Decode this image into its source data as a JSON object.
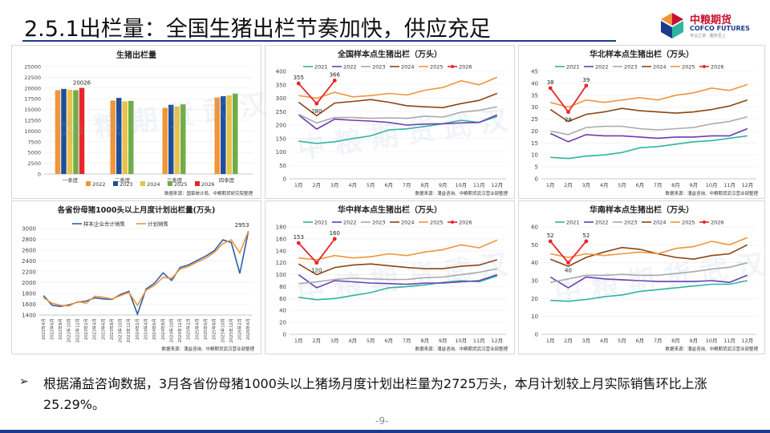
{
  "page": {
    "title": "2.5.1出栏量：全国生猪出栏节奏加快，供应充足",
    "logo_text": "中粮期货",
    "logo_sub": "COFCO FUTURES",
    "logo_tag": "专业之道 · 服务至上",
    "bullet": "根据涌益咨询数据，3月各省份母猪1000头以上猪场月度计划出栏量为2725万头，本月计划较上月实际销售环比上涨25.29%。",
    "page_number": "-9-",
    "watermark": "中粮期货武汉"
  },
  "colors": {
    "2021": "#2cb5a0",
    "2022": "#6a3bb4",
    "2023": "#a9a9a9",
    "2024": "#8b4513",
    "2025": "#f0953a",
    "2026": "#e8262a",
    "bar2022": "#f0953a",
    "bar2023": "#1f4e9a",
    "bar2024": "#e8c24a",
    "bar2025": "#70ad47",
    "bar2026": "#e8262a",
    "line_blue": "#2e5fa8",
    "line_orange": "#f0953a"
  },
  "chart_data": [
    {
      "id": "bar",
      "type": "bar",
      "title": "生猪出栏量",
      "categories": [
        "一季度",
        "二季度",
        "三季度",
        "四季度"
      ],
      "series": [
        {
          "name": "2022",
          "values": [
            19500,
            17100,
            15400,
            17800
          ]
        },
        {
          "name": "2023",
          "values": [
            19800,
            17700,
            16100,
            18100
          ]
        },
        {
          "name": "2024",
          "values": [
            19600,
            16900,
            15700,
            18300
          ]
        },
        {
          "name": "2025",
          "values": [
            19500,
            17000,
            16200,
            18700
          ]
        },
        {
          "name": "2026",
          "values": [
            20026,
            null,
            null,
            null
          ]
        }
      ],
      "data_labels": [
        {
          "series": "2026",
          "index": 0,
          "text": "20026"
        }
      ],
      "yticks": [
        "0",
        "2500",
        "5000",
        "7500",
        "10000",
        "12500",
        "15000",
        "17500",
        "20000",
        "22500",
        "25000"
      ],
      "ylim": [
        0,
        25000
      ],
      "legend": [
        "2022",
        "2023",
        "2024",
        "2025",
        "2026"
      ],
      "source": "数据来源：国家统计局、中粮期货研究院整理"
    },
    {
      "id": "line-nat",
      "type": "line",
      "title": "全国样本点生猪出栏（万头）",
      "categories": [
        "1月",
        "2月",
        "3月",
        "4月",
        "5月",
        "6月",
        "7月",
        "8月",
        "9月",
        "10月",
        "11月",
        "12月"
      ],
      "series": [
        {
          "name": "2021",
          "values": [
            140,
            132,
            138,
            150,
            160,
            182,
            186,
            195,
            205,
            218,
            210,
            232
          ]
        },
        {
          "name": "2022",
          "values": [
            238,
            185,
            222,
            218,
            215,
            210,
            200,
            204,
            205,
            208,
            210,
            238
          ]
        },
        {
          "name": "2023",
          "values": [
            240,
            208,
            228,
            228,
            225,
            227,
            225,
            233,
            230,
            248,
            255,
            268
          ]
        },
        {
          "name": "2024",
          "values": [
            285,
            235,
            282,
            288,
            295,
            285,
            272,
            268,
            265,
            280,
            292,
            318
          ]
        },
        {
          "name": "2025",
          "values": [
            310,
            300,
            322,
            305,
            310,
            318,
            312,
            330,
            340,
            365,
            350,
            378
          ]
        },
        {
          "name": "2026",
          "values": [
            355,
            280,
            366,
            null,
            null,
            null,
            null,
            null,
            null,
            null,
            null,
            null
          ]
        }
      ],
      "data_labels": [
        {
          "series": "2026",
          "index": 0,
          "text": "355"
        },
        {
          "series": "2026",
          "index": 1,
          "text": "280"
        },
        {
          "series": "2026",
          "index": 2,
          "text": "366"
        }
      ],
      "ylim": [
        0,
        400
      ],
      "yticks": [
        "0",
        "50",
        "100",
        "150",
        "200",
        "250",
        "300",
        "350",
        "400"
      ],
      "legend": [
        "2021",
        "2022",
        "2023",
        "2024",
        "2025",
        "2026"
      ],
      "source": "数据来源：涌益咨询、中粮期货武汉营业部整理"
    },
    {
      "id": "line-north",
      "type": "line",
      "title": "华北样本点生猪出栏（万头）",
      "categories": [
        "1月",
        "2月",
        "3月",
        "4月",
        "5月",
        "6月",
        "7月",
        "8月",
        "9月",
        "10月",
        "11月",
        "12月"
      ],
      "series": [
        {
          "name": "2021",
          "values": [
            9,
            8.5,
            9.5,
            10,
            11,
            13,
            13.5,
            14.5,
            15.5,
            16,
            17,
            18
          ]
        },
        {
          "name": "2022",
          "values": [
            19,
            15.5,
            18.5,
            18,
            18,
            17.5,
            17,
            17.5,
            17.5,
            18,
            18,
            21
          ]
        },
        {
          "name": "2023",
          "values": [
            20,
            18.5,
            21.5,
            22,
            22,
            21,
            20.5,
            21,
            21.5,
            23,
            24,
            26
          ]
        },
        {
          "name": "2024",
          "values": [
            29,
            24,
            27,
            28,
            29.5,
            28.5,
            28,
            27.5,
            28,
            29,
            30.5,
            33
          ]
        },
        {
          "name": "2025",
          "values": [
            32,
            30,
            33,
            32,
            33,
            34,
            33,
            35,
            36,
            38,
            37,
            39.5
          ]
        },
        {
          "name": "2026",
          "values": [
            38,
            28,
            39,
            null,
            null,
            null,
            null,
            null,
            null,
            null,
            null,
            null
          ]
        }
      ],
      "data_labels": [
        {
          "series": "2026",
          "index": 0,
          "text": "38"
        },
        {
          "series": "2026",
          "index": 1,
          "text": "28"
        },
        {
          "series": "2026",
          "index": 2,
          "text": "39"
        }
      ],
      "ylim": [
        0,
        45
      ],
      "yticks": [
        "0",
        "5",
        "10",
        "15",
        "20",
        "25",
        "30",
        "35",
        "40",
        "45"
      ],
      "legend": [
        "2021",
        "2022",
        "2023",
        "2024",
        "2025",
        "2026"
      ],
      "source": "数据来源：涌益咨询、中粮期货武汉营业部整理"
    },
    {
      "id": "line-sow",
      "type": "line",
      "title": "各省份母猪1000头以上月度计划出栏量(万头)",
      "categories": [
        "2022年4月",
        "2022年6月",
        "2022年8月",
        "2022年10月",
        "2022年12月",
        "2023年2月",
        "2023年4月",
        "2023年6月",
        "2023年8月",
        "2023年10月",
        "2023年12月",
        "2024年2月",
        "2024年4月",
        "2024年6月",
        "2024年8月",
        "2024年10月",
        "2024年12月",
        "2025年2月",
        "2025年4月",
        "2025年6月",
        "2025年8月",
        "2025年10月",
        "2025年12月",
        "2026年2月",
        "2026年4月"
      ],
      "series": [
        {
          "name": "样本企业合计销售",
          "values": [
            1760,
            1580,
            1560,
            1590,
            1640,
            1660,
            1720,
            1700,
            1690,
            1780,
            1840,
            1420,
            1880,
            1990,
            2180,
            2040,
            2280,
            2330,
            2410,
            2490,
            2590,
            2790,
            2740,
            2170,
            2953
          ]
        },
        {
          "name": "计划销售",
          "values": [
            1720,
            1620,
            1580,
            1570,
            1650,
            1620,
            1750,
            1730,
            1700,
            1760,
            1820,
            1580,
            1860,
            1950,
            2100,
            2080,
            2250,
            2300,
            2380,
            2450,
            2560,
            2720,
            2790,
            2550,
            2953
          ]
        }
      ],
      "data_labels": [
        {
          "series": "样本企业合计销售",
          "index": 24,
          "text": "2953"
        }
      ],
      "ylim": [
        1400,
        3000
      ],
      "yticks": [
        "1400",
        "1600",
        "1800",
        "2000",
        "2200",
        "2400",
        "2600",
        "2800",
        "3000"
      ],
      "legend": [
        "样本企业合计销售",
        "计划销售"
      ],
      "source": "数据来源：涌益咨询、中粮期货武汉营业部整理"
    },
    {
      "id": "line-central",
      "type": "line",
      "title": "华中样本点生猪出栏（万头）",
      "categories": [
        "1月",
        "2月",
        "3月",
        "4月",
        "5月",
        "6月",
        "7月",
        "8月",
        "9月",
        "10月",
        "11月",
        "12月"
      ],
      "series": [
        {
          "name": "2021",
          "values": [
            62,
            58,
            60,
            65,
            70,
            78,
            80,
            83,
            87,
            90,
            88,
            98
          ]
        },
        {
          "name": "2022",
          "values": [
            100,
            78,
            90,
            88,
            86,
            85,
            84,
            86,
            86,
            88,
            90,
            100
          ]
        },
        {
          "name": "2023",
          "values": [
            85,
            88,
            92,
            94,
            93,
            92,
            92,
            95,
            96,
            100,
            104,
            110
          ]
        },
        {
          "name": "2024",
          "values": [
            118,
            100,
            112,
            116,
            118,
            115,
            112,
            110,
            110,
            114,
            116,
            125
          ]
        },
        {
          "name": "2025",
          "values": [
            128,
            125,
            132,
            128,
            130,
            135,
            132,
            138,
            142,
            150,
            145,
            158
          ]
        },
        {
          "name": "2026",
          "values": [
            153,
            120,
            160,
            null,
            null,
            null,
            null,
            null,
            null,
            null,
            null,
            null
          ]
        }
      ],
      "data_labels": [
        {
          "series": "2026",
          "index": 0,
          "text": "153"
        },
        {
          "series": "2026",
          "index": 1,
          "text": "120"
        },
        {
          "series": "2026",
          "index": 2,
          "text": "160"
        }
      ],
      "ylim": [
        0,
        180
      ],
      "yticks": [
        "0",
        "20",
        "40",
        "60",
        "80",
        "100",
        "120",
        "140",
        "160",
        "180"
      ],
      "legend": [
        "2021",
        "2022",
        "2023",
        "2024",
        "2025",
        "2026"
      ],
      "source": "数据来源：涌益咨询、中粮期货武汉营业部整理"
    },
    {
      "id": "line-south",
      "type": "line",
      "title": "华南样本点生猪出栏（万头）",
      "categories": [
        "1月",
        "2月",
        "3月",
        "4月",
        "5月",
        "6月",
        "7月",
        "8月",
        "9月",
        "10月",
        "11月",
        "12月"
      ],
      "series": [
        {
          "name": "2021",
          "values": [
            19,
            18.5,
            19.5,
            21,
            22,
            24,
            25,
            26,
            27,
            28,
            28,
            30
          ]
        },
        {
          "name": "2022",
          "values": [
            32,
            26,
            32,
            31,
            30.5,
            30,
            29.5,
            29.5,
            29.5,
            30,
            29,
            33
          ]
        },
        {
          "name": "2023",
          "values": [
            29,
            31,
            33,
            33,
            33.5,
            33,
            33,
            34,
            35,
            36.5,
            37.5,
            40
          ]
        },
        {
          "name": "2024",
          "values": [
            42,
            38,
            43,
            46,
            48.5,
            47.5,
            45,
            43,
            42,
            44,
            45,
            50
          ]
        },
        {
          "name": "2025",
          "values": [
            45,
            43,
            45,
            44,
            45,
            46,
            45,
            48,
            49,
            52,
            50,
            54
          ]
        },
        {
          "name": "2026",
          "values": [
            52,
            40,
            52,
            null,
            null,
            null,
            null,
            null,
            null,
            null,
            null,
            null
          ]
        }
      ],
      "data_labels": [
        {
          "series": "2026",
          "index": 0,
          "text": "52"
        },
        {
          "series": "2026",
          "index": 1,
          "text": "40"
        },
        {
          "series": "2026",
          "index": 2,
          "text": "52"
        }
      ],
      "ylim": [
        0,
        60
      ],
      "yticks": [
        "0",
        "10",
        "20",
        "30",
        "40",
        "50",
        "60"
      ],
      "legend": [
        "2021",
        "2022",
        "2023",
        "2024",
        "2025",
        "2026"
      ],
      "source": "数据来源：涌益咨询、中粮期货武汉营业部整理"
    }
  ]
}
